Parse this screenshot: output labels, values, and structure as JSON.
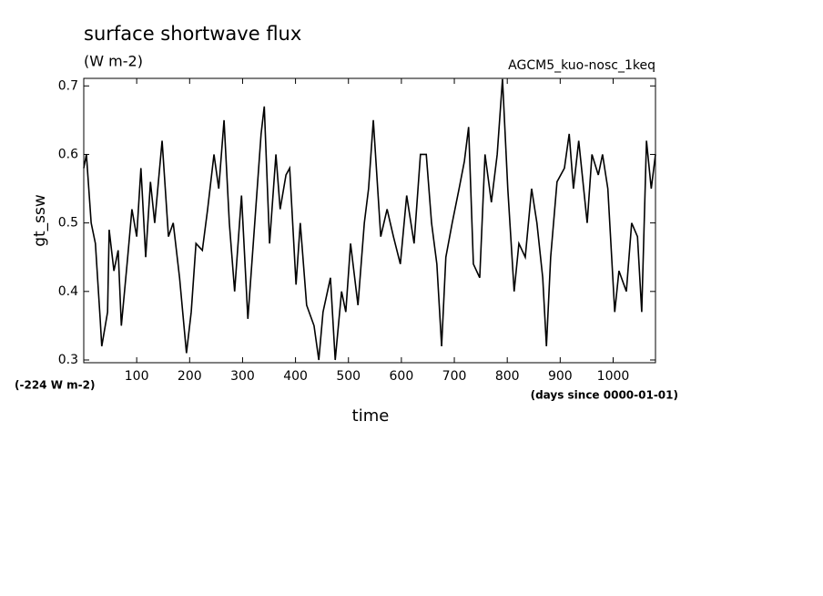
{
  "chart_data": {
    "type": "line",
    "title": "surface shortwave flux",
    "subtitle": "(W m-2)",
    "annotation": "AGCM5_kuo-nosc_1keq",
    "offset_label": "(-224 W m-2)",
    "x_unit_label": "(days since 0000-01-01)",
    "xlabel": "time",
    "ylabel": "gt_ssw",
    "xlim": [
      0,
      1080
    ],
    "ylim": [
      0.296,
      0.711
    ],
    "xticks": [
      100,
      200,
      300,
      400,
      500,
      600,
      700,
      800,
      900,
      1000
    ],
    "yticks": [
      0.3,
      0.4,
      0.5,
      0.6,
      0.7
    ],
    "grid": false,
    "series": [
      {
        "name": "gt_ssw",
        "color": "#000000",
        "x": [
          0,
          5,
          14,
          22,
          31,
          34,
          45,
          48,
          57,
          65,
          71,
          83,
          91,
          100,
          108,
          117,
          126,
          134,
          148,
          160,
          169,
          181,
          194,
          203,
          212,
          224,
          234,
          246,
          255,
          265,
          275,
          285,
          298,
          310,
          323,
          335,
          341,
          351,
          363,
          371,
          382,
          389,
          401,
          409,
          421,
          435,
          444,
          452,
          466,
          475,
          487,
          495,
          504,
          518,
          530,
          538,
          547,
          561,
          573,
          585,
          598,
          610,
          624,
          636,
          647,
          657,
          667,
          676,
          684,
          696,
          709,
          719,
          727,
          736,
          748,
          758,
          770,
          781,
          791,
          801,
          813,
          822,
          834,
          846,
          856,
          867,
          874,
          882,
          894,
          908,
          917,
          925,
          935,
          951,
          960,
          972,
          980,
          990,
          1003,
          1011,
          1025,
          1035,
          1046,
          1054,
          1063,
          1072,
          1080
        ],
        "values": [
          0.58,
          0.6,
          0.5,
          0.47,
          0.36,
          0.32,
          0.37,
          0.49,
          0.43,
          0.46,
          0.35,
          0.45,
          0.52,
          0.48,
          0.58,
          0.45,
          0.56,
          0.5,
          0.62,
          0.48,
          0.5,
          0.42,
          0.31,
          0.37,
          0.47,
          0.46,
          0.52,
          0.6,
          0.55,
          0.65,
          0.5,
          0.4,
          0.54,
          0.36,
          0.5,
          0.63,
          0.67,
          0.47,
          0.6,
          0.52,
          0.57,
          0.58,
          0.41,
          0.5,
          0.38,
          0.35,
          0.3,
          0.37,
          0.42,
          0.3,
          0.4,
          0.37,
          0.47,
          0.38,
          0.5,
          0.55,
          0.65,
          0.48,
          0.52,
          0.48,
          0.44,
          0.54,
          0.47,
          0.6,
          0.6,
          0.5,
          0.44,
          0.32,
          0.45,
          0.5,
          0.55,
          0.59,
          0.64,
          0.44,
          0.42,
          0.6,
          0.53,
          0.6,
          0.71,
          0.55,
          0.4,
          0.47,
          0.45,
          0.55,
          0.5,
          0.42,
          0.32,
          0.45,
          0.56,
          0.58,
          0.63,
          0.55,
          0.62,
          0.5,
          0.6,
          0.57,
          0.6,
          0.55,
          0.37,
          0.43,
          0.4,
          0.5,
          0.48,
          0.37,
          0.62,
          0.55,
          0.6
        ]
      }
    ]
  }
}
